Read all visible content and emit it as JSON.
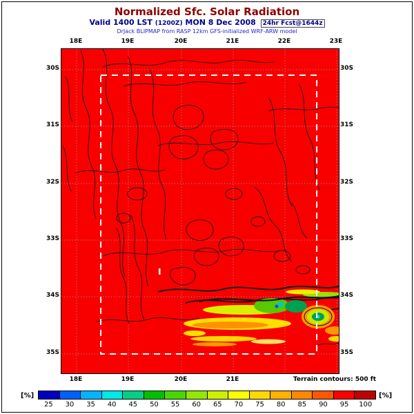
{
  "header": {
    "title": "Normalized Sfc. Solar Radiation",
    "valid_prefix": "Valid 1400 LST",
    "valid_z": "(1200Z)",
    "valid_date": "MON 8 Dec 2008",
    "fcst_tag": "24hr Fcst@1644z",
    "model_line": "DrJack BLIPMAP from RASP 12km GFS-initialized WRF-ARW model"
  },
  "map": {
    "lon_labels": [
      "18E",
      "19E",
      "20E",
      "21E",
      "22E",
      "23E"
    ],
    "lon_labels_bottom": [
      "18E",
      "19E",
      "20E",
      "21E"
    ],
    "lat_labels_left": [
      "30S",
      "31S",
      "32S",
      "33S",
      "34S",
      "35S"
    ],
    "lat_labels_right": [
      "30S",
      "31S",
      "32S",
      "33S",
      "34S",
      "35S"
    ],
    "terrain_note": "Terrain contours: 500 ft",
    "fill_color": "#f80000",
    "domain_box": "white dashed inner model domain rectangle"
  },
  "colorbar": {
    "unit_label": "[%]",
    "segments": [
      {
        "value": 25,
        "color": "#0000c0"
      },
      {
        "value": 30,
        "color": "#0060ff"
      },
      {
        "value": 35,
        "color": "#00b4ff"
      },
      {
        "value": 40,
        "color": "#00e8e8"
      },
      {
        "value": 45,
        "color": "#00d088"
      },
      {
        "value": 50,
        "color": "#00c000"
      },
      {
        "value": 55,
        "color": "#48d800"
      },
      {
        "value": 60,
        "color": "#94e800"
      },
      {
        "value": 65,
        "color": "#ccf000"
      },
      {
        "value": 70,
        "color": "#ffff00"
      },
      {
        "value": 75,
        "color": "#ffd800"
      },
      {
        "value": 80,
        "color": "#ffb000"
      },
      {
        "value": 85,
        "color": "#ff8800"
      },
      {
        "value": 90,
        "color": "#ff5800"
      },
      {
        "value": 95,
        "color": "#ff0000"
      },
      {
        "value": 100,
        "color": "#c00000"
      }
    ]
  },
  "chart_data": {
    "type": "heatmap",
    "title": "Normalized Sfc. Solar Radiation",
    "subtitle": "Valid 1400 LST (1200Z) MON 8 Dec 2008 [24hr Fcst@1644z]",
    "source": "DrJack BLIPMAP from RASP 12km GFS-initialized WRF-ARW model",
    "units": "%",
    "x_ticks": [
      "18E",
      "19E",
      "20E",
      "21E",
      "22E",
      "23E"
    ],
    "y_ticks": [
      "30S",
      "31S",
      "32S",
      "33S",
      "34S",
      "35S"
    ],
    "x_range_deg_east": [
      17.7,
      23.1
    ],
    "y_range_deg_south": [
      29.6,
      35.4
    ],
    "levels": [
      25,
      30,
      35,
      40,
      45,
      50,
      55,
      60,
      65,
      70,
      75,
      80,
      85,
      90,
      95,
      100
    ],
    "level_colors": [
      "#0000c0",
      "#0060ff",
      "#00b4ff",
      "#00e8e8",
      "#00d088",
      "#00c000",
      "#48d800",
      "#94e800",
      "#ccf000",
      "#ffff00",
      "#ffd800",
      "#ffb000",
      "#ff8800",
      "#ff5800",
      "#ff0000",
      "#c00000"
    ],
    "background_value": 100,
    "legend_position": "bottom",
    "grid": true,
    "overlays": [
      "black terrain contour lines at 500 ft interval",
      "white dashed inner model domain box",
      "gray dotted lat/lon graticule"
    ],
    "annotations": [
      "Terrain contours: 500 ft"
    ],
    "low_value_features": [
      {
        "location": "~34.5S 20.0-21.5E",
        "values": "55-90",
        "description": "east-west yellow/orange streaks of reduced solar radiation (cloud band) along south coast"
      },
      {
        "location": "~34.3S 21.5-22.0E",
        "values": "35-60",
        "description": "green cells with small cyan/blue cores (minima ~30-40%)"
      },
      {
        "location": "~34.3S 22.3E",
        "values": "30-85",
        "description": "concentric multicolor cell: orange ring, yellow-green ring, green/cyan core"
      },
      {
        "location": "~34.8S 22.9-23.1E",
        "values": "70-85",
        "description": "orange/yellow streaks near eastern map edge"
      },
      {
        "location": "elsewhere",
        "values": "100",
        "description": "entire remaining domain at 100% (red)"
      }
    ]
  }
}
